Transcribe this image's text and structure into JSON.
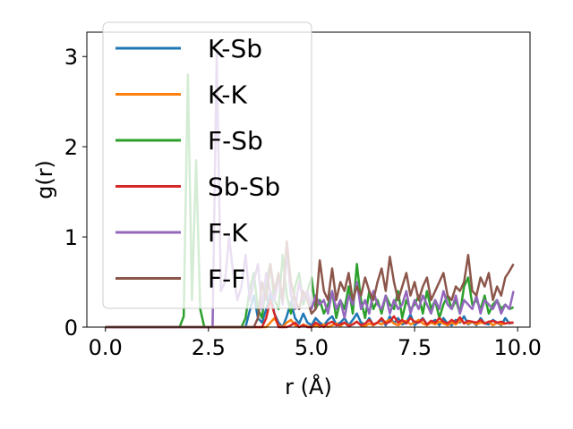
{
  "chart_data": {
    "type": "line",
    "title": "",
    "xlabel": "r (Å)",
    "ylabel": "g(r)",
    "xlim": [
      -0.45,
      10.3
    ],
    "ylim": [
      0,
      3.27
    ],
    "xticks": [
      0.0,
      2.5,
      5.0,
      7.5,
      10.0
    ],
    "xtick_labels": [
      "0.0",
      "2.5",
      "5.0",
      "7.5",
      "10.0"
    ],
    "yticks": [
      0,
      1,
      2,
      3
    ],
    "ytick_labels": [
      "0",
      "1",
      "2",
      "3"
    ],
    "grid": false,
    "legend": "upper-left",
    "x": [
      0.0,
      0.1,
      0.2,
      0.3,
      0.4,
      0.5,
      0.6,
      0.7,
      0.8,
      0.9,
      1.0,
      1.1,
      1.2,
      1.3,
      1.4,
      1.5,
      1.6,
      1.7,
      1.8,
      1.9,
      2.0,
      2.1,
      2.2,
      2.3,
      2.4,
      2.5,
      2.6,
      2.7,
      2.8,
      2.9,
      3.0,
      3.1,
      3.2,
      3.3,
      3.4,
      3.5,
      3.6,
      3.7,
      3.8,
      3.9,
      4.0,
      4.1,
      4.2,
      4.3,
      4.4,
      4.5,
      4.6,
      4.7,
      4.8,
      4.9,
      5.0,
      5.1,
      5.2,
      5.3,
      5.4,
      5.5,
      5.6,
      5.7,
      5.8,
      5.9,
      6.0,
      6.1,
      6.2,
      6.3,
      6.4,
      6.5,
      6.6,
      6.7,
      6.8,
      6.9,
      7.0,
      7.1,
      7.2,
      7.3,
      7.4,
      7.5,
      7.6,
      7.7,
      7.8,
      7.9,
      8.0,
      8.1,
      8.2,
      8.3,
      8.4,
      8.5,
      8.6,
      8.7,
      8.8,
      8.9,
      9.0,
      9.1,
      9.2,
      9.3,
      9.4,
      9.5,
      9.6,
      9.7,
      9.8,
      9.9
    ],
    "series": [
      {
        "name": "K-Sb",
        "color": "#1f77b4",
        "values": [
          0,
          0,
          0,
          0,
          0,
          0,
          0,
          0,
          0,
          0,
          0,
          0,
          0,
          0,
          0,
          0,
          0,
          0,
          0,
          0,
          0,
          0,
          0,
          0,
          0,
          0,
          0,
          0,
          0,
          0,
          0,
          0,
          0,
          0,
          0,
          0.18,
          0.35,
          0.1,
          0.05,
          0.2,
          0.38,
          0.15,
          0.05,
          0,
          0.12,
          0.28,
          0.1,
          0.04,
          0.15,
          0.05,
          0.02,
          0.1,
          0.05,
          0.02,
          0.08,
          0.12,
          0.03,
          0.05,
          0.1,
          0.02,
          0.08,
          0.15,
          0.05,
          0.03,
          0.1,
          0.02,
          0.05,
          0.08,
          0.02,
          0.12,
          0.04,
          0.1,
          0.03,
          0.05,
          0.14,
          0.02,
          0.06,
          0.1,
          0.03,
          0.05,
          0.08,
          0.02,
          0.1,
          0.04,
          0.02,
          0.08,
          0.05,
          0.12,
          0.03,
          0.06,
          0.02,
          0.1,
          0.04,
          0.03,
          0.08,
          0.05,
          0.02,
          0.1,
          0.04,
          0.05
        ]
      },
      {
        "name": "K-K",
        "color": "#ff7f0e",
        "values": [
          0,
          0,
          0,
          0,
          0,
          0,
          0,
          0,
          0,
          0,
          0,
          0,
          0,
          0,
          0,
          0,
          0,
          0,
          0,
          0,
          0,
          0,
          0,
          0,
          0,
          0,
          0,
          0,
          0,
          0,
          0,
          0,
          0,
          0,
          0,
          0,
          0,
          0,
          0,
          0,
          0.05,
          0.1,
          0.02,
          0,
          0.05,
          0.08,
          0.02,
          0,
          0.03,
          0.01,
          0,
          0.02,
          0,
          0.03,
          0,
          0.02,
          0.04,
          0.01,
          0.05,
          0.02,
          0.03,
          0.06,
          0.02,
          0.01,
          0.04,
          0.02,
          0.05,
          0.03,
          0.06,
          0.08,
          0.04,
          0.02,
          0.05,
          0.07,
          0.03,
          0.05,
          0.08,
          0.04,
          0.02,
          0.05,
          0.03,
          0.06,
          0.04,
          0.02,
          0.05,
          0.03,
          0.07,
          0.05,
          0.04,
          0.06,
          0.03,
          0.05,
          0.04,
          0.06,
          0.02,
          0.05,
          0.03,
          0.04,
          0.05,
          0.05
        ]
      },
      {
        "name": "F-Sb",
        "color": "#2ca02c",
        "values": [
          0,
          0,
          0,
          0,
          0,
          0,
          0,
          0,
          0,
          0,
          0,
          0,
          0,
          0,
          0,
          0,
          0,
          0,
          0,
          0.12,
          2.8,
          0.3,
          1.85,
          0.2,
          0,
          0,
          0,
          0,
          0,
          0,
          0,
          0,
          0,
          0,
          0.1,
          0.42,
          0.6,
          0.2,
          0.1,
          0.5,
          0.7,
          0.3,
          0.2,
          0.8,
          0.35,
          0.15,
          0.45,
          0.6,
          0.25,
          0.4,
          0.55,
          0.2,
          0.3,
          0.15,
          0.25,
          0.4,
          0.1,
          0.3,
          0.2,
          0.45,
          0.15,
          0.7,
          0.3,
          0.1,
          0.4,
          0.2,
          0.3,
          0.15,
          0.35,
          0.25,
          0.2,
          0.4,
          0.1,
          0.3,
          0.2,
          0.25,
          0.35,
          0.15,
          0.4,
          0.2,
          0.3,
          0.1,
          0.25,
          0.35,
          0.2,
          0.3,
          0.15,
          0.45,
          0.55,
          0.25,
          0.3,
          0.2,
          0.35,
          0.15,
          0.25,
          0.3,
          0.2,
          0.25,
          0.2,
          0.22
        ]
      },
      {
        "name": "Sb-Sb",
        "color": "#d62728",
        "values": [
          0,
          0,
          0,
          0,
          0,
          0,
          0,
          0,
          0,
          0,
          0,
          0,
          0,
          0,
          0,
          0,
          0,
          0,
          0,
          0,
          0,
          0,
          0,
          0,
          0,
          0,
          0,
          0,
          0,
          0,
          0,
          0,
          0,
          0,
          0,
          0,
          0,
          0,
          0,
          0.1,
          0.3,
          0.15,
          0,
          0,
          0,
          0.02,
          0.05,
          0,
          0.02,
          0,
          0,
          0.05,
          0.02,
          0,
          0.04,
          0.06,
          0.02,
          0.03,
          0.05,
          0.01,
          0.03,
          0.06,
          0.02,
          0.04,
          0.08,
          0.03,
          0.05,
          0.1,
          0.04,
          0.06,
          0.12,
          0.05,
          0.08,
          0.04,
          0.1,
          0.06,
          0.05,
          0.09,
          0.03,
          0.07,
          0.05,
          0.1,
          0.06,
          0.04,
          0.08,
          0.05,
          0.11,
          0.04,
          0.07,
          0.06,
          0.05,
          0.08,
          0.04,
          0.06,
          0.07,
          0.05,
          0.06,
          0.04,
          0.05,
          0.05
        ]
      },
      {
        "name": "F-K",
        "color": "#9467bd",
        "values": [
          0,
          0,
          0,
          0,
          0,
          0,
          0,
          0,
          0,
          0,
          0,
          0,
          0,
          0,
          0,
          0,
          0,
          0,
          0,
          0,
          0,
          0,
          0,
          0,
          0,
          0,
          0,
          3.05,
          0.4,
          0.5,
          1.0,
          0.6,
          0.3,
          0.45,
          0.8,
          0.3,
          0.5,
          0.7,
          0.2,
          0.6,
          0.4,
          0.3,
          0.55,
          0.25,
          0.85,
          0.35,
          0.2,
          0.5,
          0.3,
          0.4,
          0.2,
          0.35,
          0.25,
          0.3,
          0.15,
          0.4,
          0.2,
          0.3,
          0.1,
          0.35,
          0.25,
          0.5,
          0.2,
          0.3,
          0.15,
          0.4,
          0.25,
          0.2,
          0.35,
          0.15,
          0.3,
          0.2,
          0.25,
          0.4,
          0.15,
          0.3,
          0.2,
          0.35,
          0.25,
          0.15,
          0.3,
          0.2,
          0.4,
          0.25,
          0.2,
          0.35,
          0.15,
          0.3,
          0.25,
          0.2,
          0.35,
          0.15,
          0.3,
          0.25,
          0.2,
          0.3,
          0.15,
          0.25,
          0.2,
          0.4
        ]
      },
      {
        "name": "F-F",
        "color": "#8c564b",
        "values": [
          0,
          0,
          0,
          0,
          0,
          0,
          0,
          0,
          0,
          0,
          0,
          0,
          0,
          0,
          0,
          0,
          0,
          0,
          0,
          0,
          0,
          0,
          0,
          0,
          0,
          0,
          0,
          0,
          0,
          0,
          0,
          0,
          0,
          0,
          0,
          0,
          0,
          0.1,
          0.5,
          0.3,
          0.7,
          0.4,
          0.6,
          0.3,
          0.95,
          0.5,
          0.3,
          0.2,
          0.4,
          0.3,
          0.15,
          0.2,
          0.74,
          0.4,
          0.3,
          0.65,
          0.3,
          0.5,
          0.4,
          0.6,
          0.3,
          0.45,
          0.35,
          0.55,
          0.4,
          0.3,
          0.5,
          0.65,
          0.4,
          0.78,
          0.5,
          0.3,
          0.45,
          0.6,
          0.35,
          0.5,
          0.3,
          0.45,
          0.55,
          0.3,
          0.4,
          0.5,
          0.6,
          0.35,
          0.3,
          0.45,
          0.4,
          0.5,
          0.8,
          0.4,
          0.35,
          0.55,
          0.45,
          0.6,
          0.3,
          0.45,
          0.35,
          0.55,
          0.62,
          0.7
        ]
      }
    ]
  }
}
